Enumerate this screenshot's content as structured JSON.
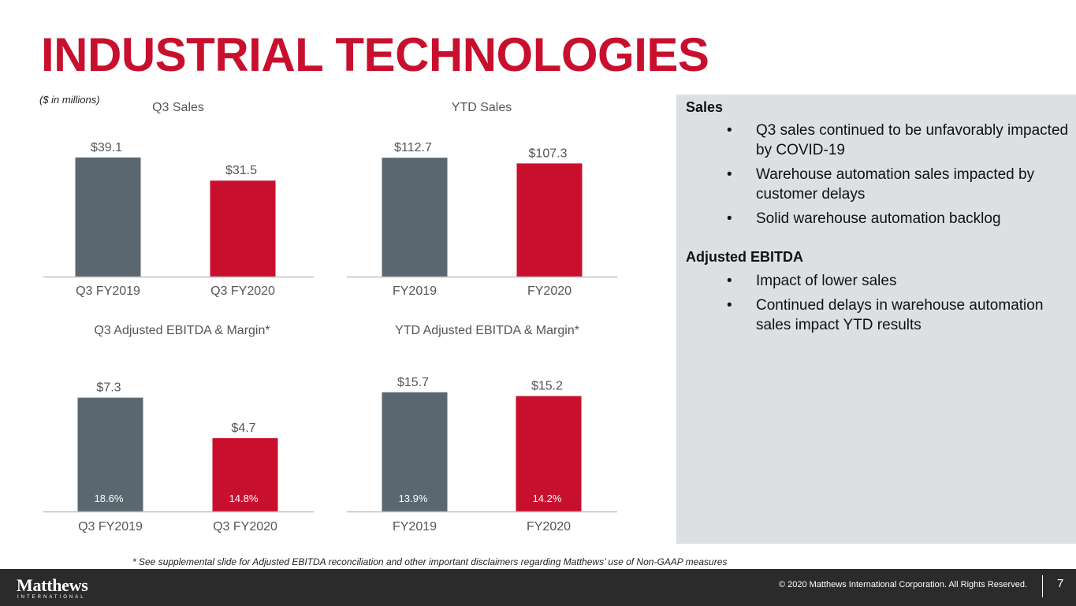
{
  "slide": {
    "title": "INDUSTRIAL TECHNOLOGIES",
    "units_note": "($ in millions)",
    "accent_color": "#c8102e",
    "gray_color": "#5b6770"
  },
  "chart_data": [
    {
      "type": "bar",
      "title": "Q3 Sales",
      "categories": [
        "Q3 FY2019",
        "Q3 FY2020"
      ],
      "values": [
        39.1,
        31.5
      ],
      "value_labels": [
        "$39.1",
        "$31.5"
      ],
      "colors": [
        "#5b6770",
        "#c8102e"
      ],
      "ylim": [
        0,
        45
      ]
    },
    {
      "type": "bar",
      "title": "YTD Sales",
      "categories": [
        "FY2019",
        "FY2020"
      ],
      "values": [
        112.7,
        107.3
      ],
      "value_labels": [
        "$112.7",
        "$107.3"
      ],
      "colors": [
        "#5b6770",
        "#c8102e"
      ],
      "ylim": [
        0,
        130
      ]
    },
    {
      "type": "bar",
      "title": "Q3 Adjusted EBITDA & Margin*",
      "categories": [
        "Q3 FY2019",
        "Q3 FY2020"
      ],
      "values": [
        7.3,
        4.7
      ],
      "value_labels": [
        "$7.3",
        "$4.7"
      ],
      "margins": [
        "18.6%",
        "14.8%"
      ],
      "colors": [
        "#5b6770",
        "#c8102e"
      ],
      "ylim": [
        0,
        9
      ]
    },
    {
      "type": "bar",
      "title": "YTD Adjusted EBITDA & Margin*",
      "categories": [
        "FY2019",
        "FY2020"
      ],
      "values": [
        15.7,
        15.2
      ],
      "value_labels": [
        "$15.7",
        "$15.2"
      ],
      "margins": [
        "13.9%",
        "14.2%"
      ],
      "colors": [
        "#5b6770",
        "#c8102e"
      ],
      "ylim": [
        0,
        19
      ]
    }
  ],
  "panel": {
    "sales_heading": "Sales",
    "sales_bullets": [
      "Q3 sales continued to be unfavorably impacted by COVID-19",
      "Warehouse automation sales impacted by customer delays",
      "Solid warehouse automation backlog"
    ],
    "ebitda_heading": "Adjusted EBITDA",
    "ebitda_bullets": [
      "Impact of lower sales",
      "Continued delays in warehouse automation sales impact YTD results"
    ],
    "bullet_symbol": "•"
  },
  "footnote": "* See supplemental slide for Adjusted EBITDA reconciliation and other important disclaimers regarding Matthews’ use of Non-GAAP measures",
  "footer": {
    "logo_name": "Matthews",
    "logo_sub": "INTERNATIONAL",
    "copyright": "© 2020 Matthews International Corporation. All Rights Reserved.",
    "page_number": "7"
  }
}
